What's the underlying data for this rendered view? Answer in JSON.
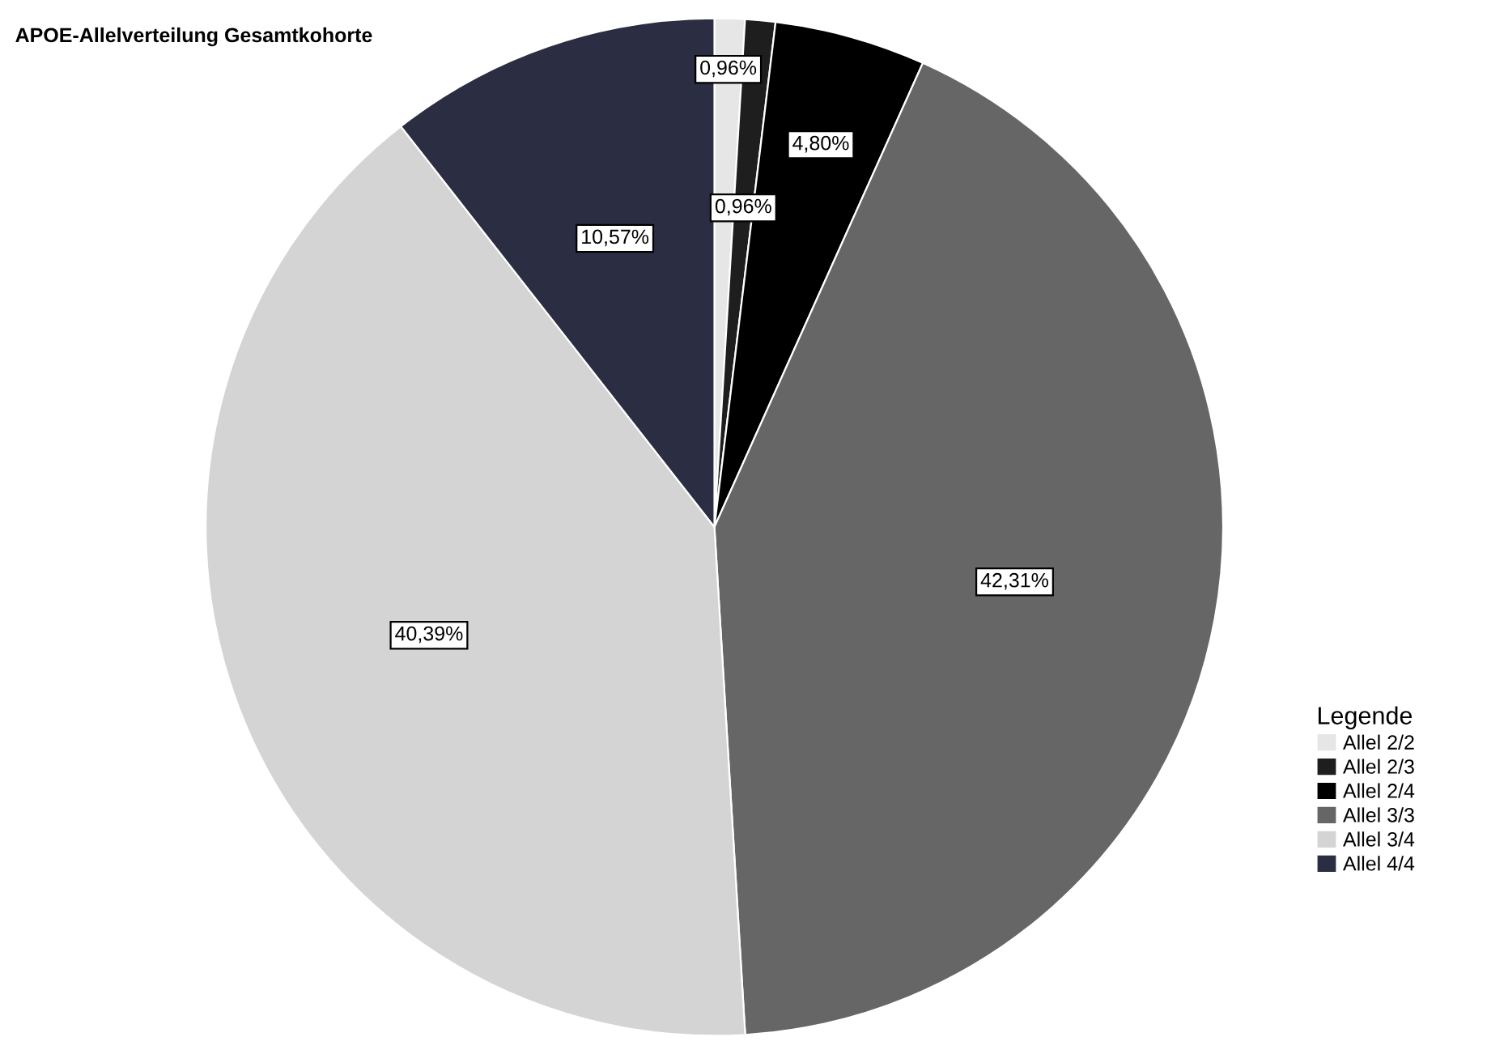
{
  "chart_data": {
    "type": "pie",
    "title": "APOE-Allelverteilung Gesamtkohorte",
    "legend_title": "Legende",
    "legend": "right",
    "categories": [
      "Allel 2/2",
      "Allel 2/3",
      "Allel 2/4",
      "Allel 3/3",
      "Allel 3/4",
      "Allel 4/4"
    ],
    "values": [
      0.96,
      0.96,
      4.8,
      42.31,
      40.39,
      10.57
    ],
    "value_labels": [
      "0,96%",
      "0,96%",
      "4,80%",
      "42,31%",
      "40,39%",
      "10,57%"
    ],
    "colors": [
      "#e6e6e6",
      "#1e1e1e",
      "#000000",
      "#666666",
      "#d4d4d4",
      "#2b2d42"
    ]
  }
}
